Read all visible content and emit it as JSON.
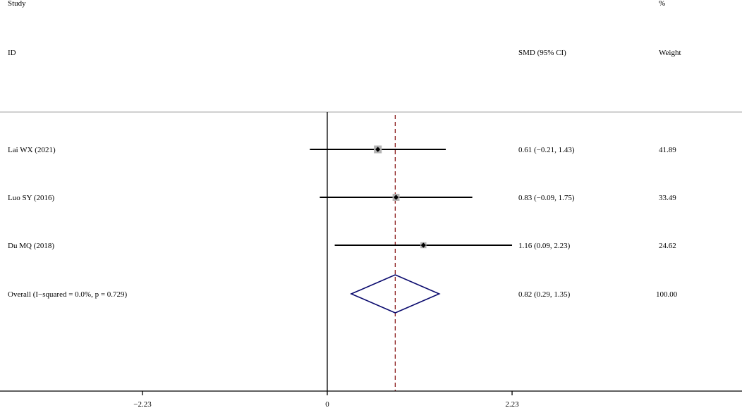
{
  "header": {
    "study_top": "Study",
    "study_bottom": "ID",
    "effect_label": "SMD (95% CI)",
    "weight_top": "%",
    "weight_bottom": "Weight"
  },
  "chart_data": {
    "type": "forest",
    "xlim": [
      -3.2,
      5.1
    ],
    "x_ticks": [
      -2.23,
      0,
      2.23
    ],
    "x_tick_labels": [
      "−2.23",
      "0",
      "2.23"
    ],
    "null_line": 0,
    "overall_line": 0.82,
    "studies": [
      {
        "label": "Lai WX (2021)",
        "smd": 0.61,
        "lower": -0.21,
        "upper": 1.43,
        "ci_text": "0.61 (−0.21, 1.43)",
        "weight": 41.89,
        "weight_text": "41.89"
      },
      {
        "label": "Luo SY (2016)",
        "smd": 0.83,
        "lower": -0.09,
        "upper": 1.75,
        "ci_text": "0.83 (−0.09, 1.75)",
        "weight": 33.49,
        "weight_text": "33.49"
      },
      {
        "label": "Du MQ (2018)",
        "smd": 1.16,
        "lower": 0.09,
        "upper": 2.23,
        "ci_text": "1.16 (0.09, 2.23)",
        "weight": 24.62,
        "weight_text": "24.62"
      }
    ],
    "overall": {
      "label": "Overall  (I−squared = 0.0%, p = 0.729)",
      "smd": 0.82,
      "lower": 0.29,
      "upper": 1.35,
      "ci_text": "0.82 (0.29, 1.35)",
      "weight_text": "100.00"
    },
    "colors": {
      "axis": "#000000",
      "separator": "#b4b4b4",
      "box": "#b4b4b4",
      "point": "#000000",
      "overall_line": "#8b1a1a",
      "diamond": "#0a0a6e"
    }
  }
}
